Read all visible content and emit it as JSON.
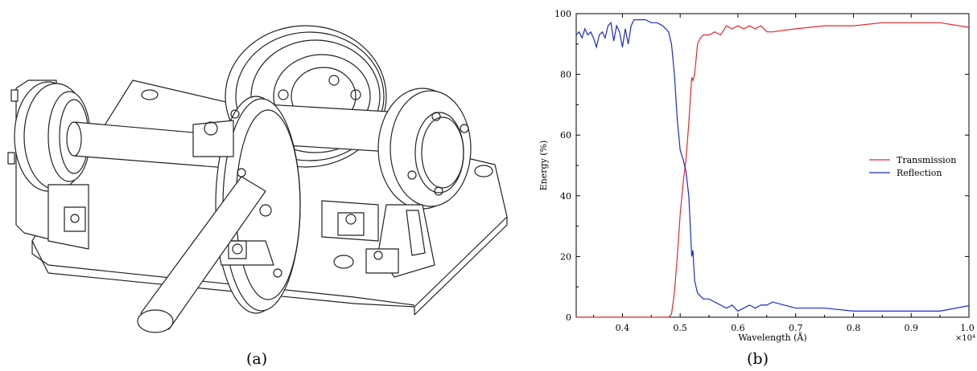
{
  "figure": {
    "caption_a": "(a)",
    "caption_b": "(b)"
  },
  "chart_data": {
    "type": "line",
    "title": "",
    "xlabel": "Wavelength (Å)",
    "ylabel": "Energy (%)",
    "x_multiplier_label": "×10⁴",
    "xlim": [
      0.32,
      1.0
    ],
    "ylim": [
      0,
      100
    ],
    "x_ticks": [
      "0.4",
      "0.5",
      "0.6",
      "0.7",
      "0.8",
      "0.9",
      "1.0"
    ],
    "y_ticks": [
      "0",
      "20",
      "40",
      "60",
      "80",
      "100"
    ],
    "grid": false,
    "legend_position": "center-right",
    "series": [
      {
        "name": "Transmission",
        "color": "#e8262b",
        "x": [
          0.32,
          0.4,
          0.46,
          0.47,
          0.48,
          0.485,
          0.49,
          0.495,
          0.5,
          0.505,
          0.51,
          0.515,
          0.52,
          0.522,
          0.525,
          0.527,
          0.53,
          0.535,
          0.54,
          0.545,
          0.55,
          0.56,
          0.57,
          0.58,
          0.59,
          0.6,
          0.61,
          0.62,
          0.63,
          0.64,
          0.65,
          0.66,
          0.7,
          0.75,
          0.8,
          0.85,
          0.9,
          0.95,
          1.0
        ],
        "y": [
          0,
          0,
          0,
          0,
          0,
          1,
          8,
          20,
          34,
          44,
          52,
          64,
          79,
          78,
          80,
          84,
          90,
          92,
          93,
          93,
          93,
          94,
          93,
          96,
          95,
          96,
          95,
          96,
          95,
          96,
          94,
          94,
          95,
          96,
          96,
          97,
          97,
          97,
          95.5
        ]
      },
      {
        "name": "Reflection",
        "color": "#1a29d6",
        "x": [
          0.32,
          0.325,
          0.33,
          0.335,
          0.34,
          0.345,
          0.35,
          0.355,
          0.36,
          0.365,
          0.37,
          0.375,
          0.38,
          0.385,
          0.39,
          0.395,
          0.4,
          0.405,
          0.41,
          0.415,
          0.42,
          0.43,
          0.44,
          0.45,
          0.46,
          0.47,
          0.48,
          0.485,
          0.49,
          0.495,
          0.5,
          0.505,
          0.51,
          0.515,
          0.52,
          0.522,
          0.525,
          0.53,
          0.54,
          0.55,
          0.56,
          0.57,
          0.58,
          0.59,
          0.6,
          0.61,
          0.62,
          0.63,
          0.64,
          0.65,
          0.66,
          0.7,
          0.75,
          0.8,
          0.85,
          0.9,
          0.95,
          1.0
        ],
        "y": [
          93,
          94,
          92,
          95,
          93,
          94,
          92,
          89,
          93,
          94,
          92,
          96,
          97,
          91,
          96,
          94,
          89,
          95,
          90,
          96,
          98,
          98,
          98,
          97,
          97,
          96,
          94,
          90,
          80,
          65,
          55,
          52,
          48,
          40,
          20,
          22,
          12,
          8,
          6,
          6,
          5,
          4,
          3,
          4,
          2,
          3,
          4,
          3,
          4,
          4,
          5,
          3,
          3,
          2,
          2,
          2,
          2,
          3.8
        ]
      }
    ]
  }
}
